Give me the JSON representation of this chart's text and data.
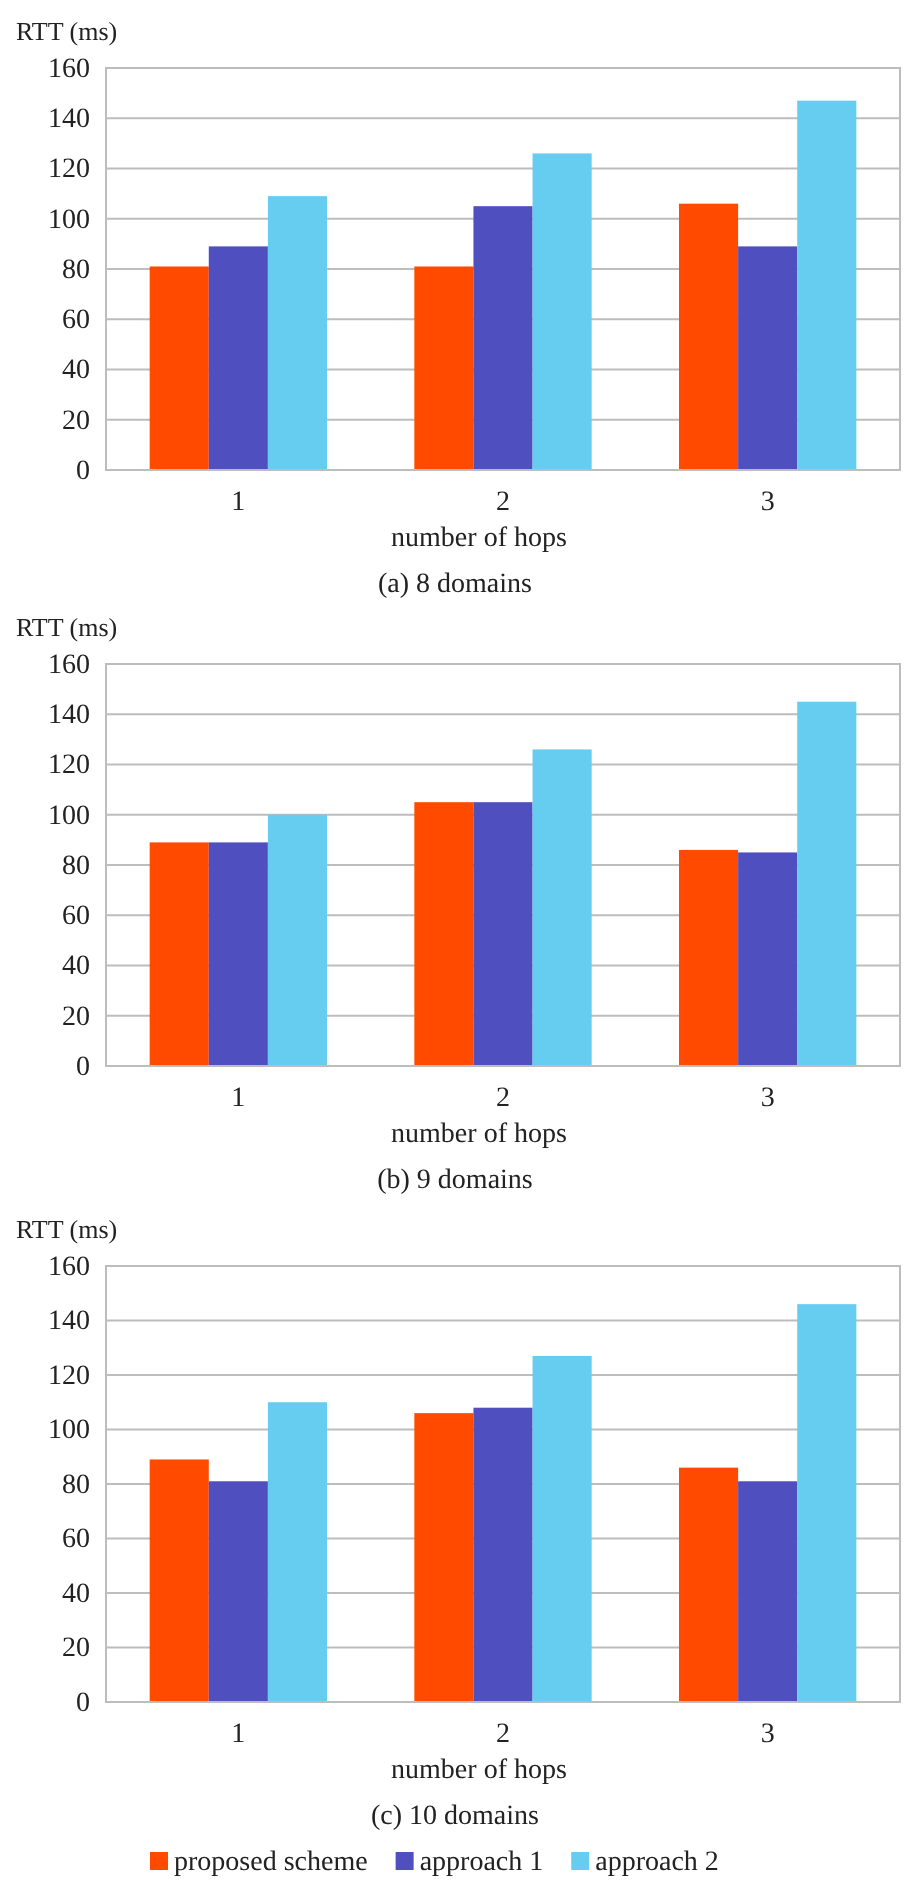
{
  "chart_data": [
    {
      "type": "bar",
      "title": "(a) 8 domains",
      "xlabel": "number of hops",
      "ylabel": "RTT (ms)",
      "categories": [
        "1",
        "2",
        "3"
      ],
      "ylim": [
        0,
        160
      ],
      "yticks": [
        0,
        20,
        40,
        60,
        80,
        100,
        120,
        140,
        160
      ],
      "grid": "y",
      "legend": false,
      "series": [
        {
          "color": "#ff4a00",
          "values": [
            81,
            81,
            106
          ]
        },
        {
          "color": "#4f4fbf",
          "values": [
            89,
            105,
            89
          ]
        },
        {
          "color": "#66ccf0",
          "values": [
            109,
            126,
            147
          ]
        }
      ]
    },
    {
      "type": "bar",
      "title": "(b) 9 domains",
      "xlabel": "number of hops",
      "ylabel": "RTT (ms)",
      "categories": [
        "1",
        "2",
        "3"
      ],
      "ylim": [
        0,
        160
      ],
      "yticks": [
        0,
        20,
        40,
        60,
        80,
        100,
        120,
        140,
        160
      ],
      "grid": "y",
      "legend": false,
      "series": [
        {
          "color": "#ff4a00",
          "values": [
            89,
            105,
            86
          ]
        },
        {
          "color": "#4f4fbf",
          "values": [
            89,
            105,
            85
          ]
        },
        {
          "color": "#66ccf0",
          "values": [
            100,
            126,
            145
          ]
        }
      ]
    },
    {
      "type": "bar",
      "title": "(c) 10 domains",
      "xlabel": "number of hops",
      "ylabel": "RTT (ms)",
      "categories": [
        "1",
        "2",
        "3"
      ],
      "ylim": [
        0,
        160
      ],
      "yticks": [
        0,
        20,
        40,
        60,
        80,
        100,
        120,
        140,
        160
      ],
      "grid": "y",
      "legend": "bottom",
      "series": [
        {
          "name": "proposed scheme",
          "color": "#ff4a00",
          "values": [
            89,
            106,
            86
          ]
        },
        {
          "name": "approach 1",
          "color": "#4f4fbf",
          "values": [
            81,
            108,
            81
          ]
        },
        {
          "name": "approach 2",
          "color": "#66ccf0",
          "values": [
            110,
            127,
            146
          ]
        }
      ]
    }
  ]
}
